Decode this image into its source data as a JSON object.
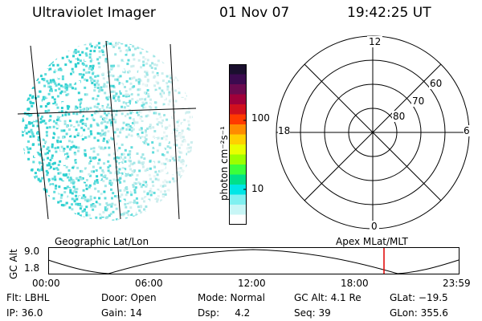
{
  "header": {
    "title": "Ultraviolet Imager",
    "date": "01 Nov 07",
    "time": "19:42:25 UT"
  },
  "colorbar": {
    "unit_label": "photon cm⁻²s⁻¹",
    "ticks": [
      "100",
      "10"
    ],
    "colors": [
      "#1a0f2e",
      "#3b0a4f",
      "#6a0a4f",
      "#a0003a",
      "#d0101e",
      "#ff3a00",
      "#ff8c00",
      "#ffd000",
      "#e8ff00",
      "#9cff00",
      "#3cff3c",
      "#00e08a",
      "#00e6e6",
      "#7ff0f0",
      "#c8f6f6",
      "#ffffff"
    ]
  },
  "polar": {
    "lat_labels": [
      "80",
      "70",
      "60"
    ],
    "mlt_labels": {
      "top": "12",
      "bottom": "0",
      "left": "18",
      "right": "6"
    }
  },
  "panels": {
    "geo_label": "Geographic Lat/Lon",
    "apex_label": "Apex  MLat/MLT"
  },
  "altitude": {
    "axis_label": "GC Alt",
    "y_ticks": [
      "9.0",
      "1.8"
    ],
    "x_ticks": [
      "00:00",
      "06:00",
      "12:00",
      "18:00",
      "23:59"
    ],
    "marker_color": "#e00000"
  },
  "info": {
    "row1": {
      "flt": "Flt: LBHL",
      "door": "Door: Open",
      "mode": "Mode: Normal",
      "gcalt": "GC Alt: 4.1 Re",
      "glat": "GLat: −19.5"
    },
    "row2": {
      "ip": "IP: 36.0",
      "gain": "Gain: 14",
      "dsp": "Dsp:     4.2",
      "seq": "Seq: 39",
      "glon": "GLon: 355.6"
    }
  },
  "scatter_colors": [
    "#ffffff",
    "#e9f5f5",
    "#cdeeee",
    "#9fe6e6",
    "#5fdcdc",
    "#2fd0d0"
  ]
}
